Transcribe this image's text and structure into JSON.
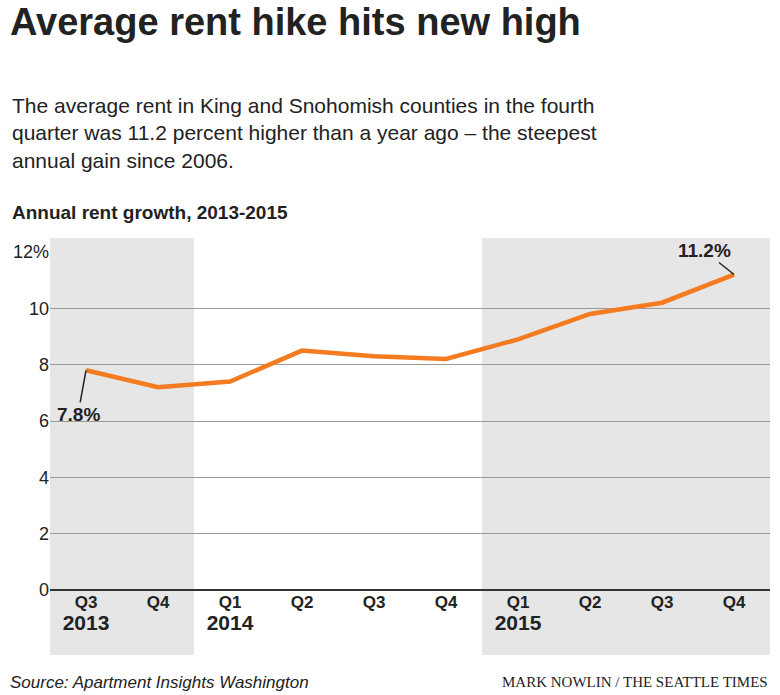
{
  "chart_data": {
    "type": "line",
    "title": "Average rent hike hits new high",
    "subtitle": "The average rent in King and Snohomish counties in the fourth quarter was 11.2 percent higher than a year ago – the steepest annual gain since 2006.",
    "ylabel": "Annual rent growth, 2013-2015",
    "source": "Source: Apartment Insights Washington",
    "credit": "MARK NOWLIN / THE SEATTLE TIMES",
    "categories": [
      "Q3",
      "Q4",
      "Q1",
      "Q2",
      "Q3",
      "Q4",
      "Q1",
      "Q2",
      "Q3",
      "Q4"
    ],
    "category_groups": [
      "2013",
      null,
      "2014",
      null,
      null,
      null,
      "2015",
      null,
      null,
      null
    ],
    "values": [
      7.8,
      7.2,
      7.4,
      8.5,
      8.3,
      8.2,
      8.9,
      9.8,
      10.2,
      11.2
    ],
    "value_labels": [
      "7.8%",
      null,
      null,
      null,
      null,
      null,
      null,
      null,
      null,
      "11.2%"
    ],
    "color": "#f47b20",
    "ylim": [
      0,
      12
    ],
    "yticks": [
      0,
      2,
      4,
      6,
      8,
      10,
      {
        "value": 12,
        "label": "12%"
      }
    ],
    "grid": true
  }
}
